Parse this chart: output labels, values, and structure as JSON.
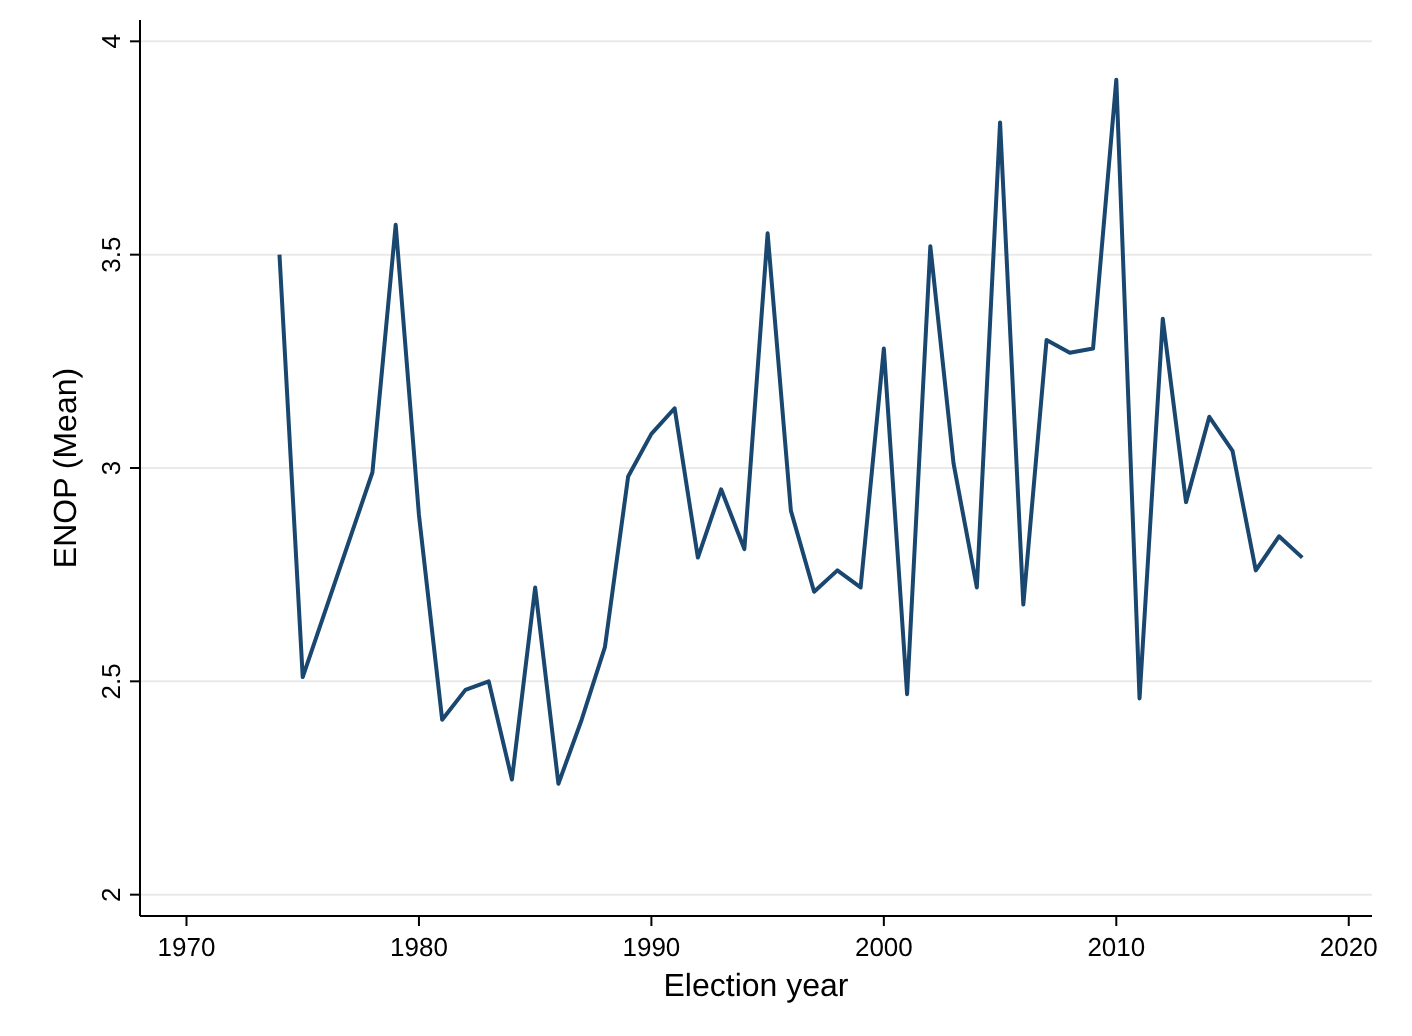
{
  "chart_data": {
    "type": "line",
    "xlabel": "Election year",
    "ylabel": "ENOP (Mean)",
    "x": [
      1974,
      1975,
      1978,
      1979,
      1980,
      1981,
      1982,
      1983,
      1984,
      1985,
      1986,
      1987,
      1988,
      1989,
      1990,
      1991,
      1992,
      1993,
      1994,
      1995,
      1996,
      1997,
      1998,
      1999,
      2000,
      2001,
      2002,
      2003,
      2004,
      2005,
      2006,
      2007,
      2008,
      2009,
      2010,
      2011,
      2012,
      2013,
      2014,
      2015,
      2016,
      2017,
      2018
    ],
    "series": [
      {
        "color": "#1a476f",
        "values": [
          3.5,
          2.51,
          2.99,
          3.57,
          2.89,
          2.41,
          2.48,
          2.5,
          2.27,
          2.72,
          2.26,
          2.41,
          2.58,
          2.98,
          3.08,
          3.14,
          2.79,
          2.95,
          2.81,
          3.55,
          2.9,
          2.71,
          2.76,
          2.72,
          3.28,
          2.47,
          3.52,
          3.01,
          2.72,
          3.81,
          2.68,
          3.3,
          3.27,
          3.28,
          3.91,
          2.46,
          3.35,
          2.92,
          3.12,
          3.04,
          2.76,
          2.84,
          2.79
        ]
      }
    ],
    "xlim": [
      1968,
      2021
    ],
    "xticks": [
      1970,
      1980,
      1990,
      2000,
      2010,
      2020
    ],
    "ylim": [
      1.95,
      4.05
    ],
    "yticks": [
      2,
      {
        "value": 2.5,
        "label": "2.5"
      },
      3,
      {
        "value": 3.5,
        "label": "3.5"
      },
      4
    ],
    "grid": "y",
    "line_style": "solid",
    "marker": "none"
  }
}
